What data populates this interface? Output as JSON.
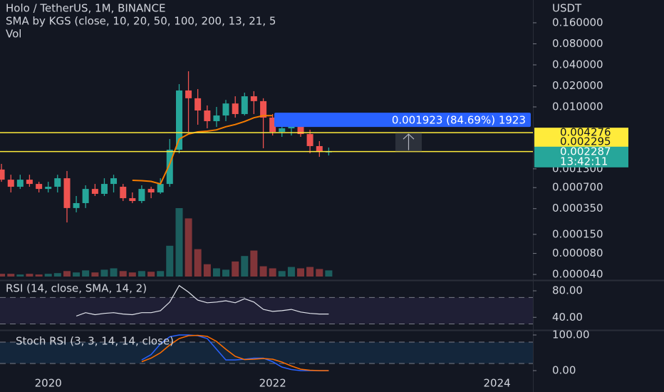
{
  "chart_data": [
    {
      "type": "candlestick",
      "title": "Holo / TetherUS, 1M, BINANCE",
      "subtitle": "SMA by KGS (close, 10, 20, 50, 100, 200, 13, 21, 5",
      "volume_label": "Vol",
      "y_axis_label": "USDT",
      "log_scale": true,
      "up_color": "#26a69a",
      "down_color": "#ef5350",
      "x": [
        2019.583,
        2019.667,
        2019.75,
        2019.833,
        2019.917,
        2020,
        2020.083,
        2020.167,
        2020.25,
        2020.333,
        2020.417,
        2020.5,
        2020.583,
        2020.667,
        2020.75,
        2020.833,
        2020.917,
        2021,
        2021.083,
        2021.167,
        2021.25,
        2021.333,
        2021.417,
        2021.5,
        2021.583,
        2021.667,
        2021.75,
        2021.833,
        2021.917,
        2022,
        2022.083,
        2022.167,
        2022.25,
        2022.333,
        2022.417,
        2022.5
      ],
      "xlim": [
        2019.57,
        2024.32
      ],
      "xticks": [
        2020,
        2022,
        2024
      ],
      "open": [
        0.00127,
        0.000909,
        0.00072,
        0.000909,
        0.00079,
        0.00067,
        0.00072,
        0.000953,
        0.000357,
        0.00042,
        0.00067,
        0.00057,
        0.00079,
        0.00072,
        0.000494,
        0.00045,
        0.00067,
        0.000597,
        0.00079,
        0.00244,
        0.0172,
        0.0133,
        0.00889,
        0.00625,
        0.00754,
        0.0112,
        0.0079,
        0.0142,
        0.0121,
        0.00703,
        0.00439,
        0.00494,
        0.00625,
        0.00409,
        0.00275,
        0.00228
      ],
      "high": [
        0.00153,
        0.00107,
        0.00107,
        0.00107,
        0.000848,
        0.000848,
        0.00107,
        0.00121,
        0.000531,
        0.000755,
        0.00079,
        0.000953,
        0.00107,
        0.00079,
        0.000597,
        0.000755,
        0.00072,
        0.000953,
        0.00347,
        0.0212,
        0.0324,
        0.018,
        0.0105,
        0.01,
        0.0126,
        0.0142,
        0.016,
        0.0168,
        0.0133,
        0.0079,
        0.00655,
        0.0079,
        0.00703,
        0.00471,
        0.00324,
        0.00262
      ],
      "low": [
        0.000848,
        0.000597,
        0.00067,
        0.00072,
        0.000597,
        0.000597,
        0.000597,
        0.000222,
        0.00031,
        0.000357,
        0.000531,
        0.000531,
        0.000597,
        0.00045,
        0.00042,
        0.00042,
        0.000494,
        0.00057,
        0.00072,
        0.00217,
        0.00439,
        0.00556,
        0.00494,
        0.00518,
        0.00625,
        0.00703,
        0.00754,
        0.0079,
        0.00256,
        0.0039,
        0.00373,
        0.0039,
        0.00373,
        0.00217,
        0.00193,
        0.00202
      ],
      "close": [
        0.000909,
        0.00072,
        0.000909,
        0.00079,
        0.00067,
        0.00072,
        0.000953,
        0.000357,
        0.00042,
        0.00067,
        0.00057,
        0.00079,
        0.000953,
        0.000494,
        0.00045,
        0.00067,
        0.000597,
        0.00079,
        0.00244,
        0.0172,
        0.0133,
        0.00889,
        0.00625,
        0.00754,
        0.0112,
        0.0079,
        0.0142,
        0.0121,
        0.00703,
        0.00439,
        0.00494,
        0.00625,
        0.00409,
        0.00275,
        0.00228,
        0.002287
      ],
      "volume": [
        4,
        4,
        3,
        4,
        3,
        4,
        5,
        8,
        6,
        9,
        6,
        10,
        12,
        8,
        6,
        8,
        7,
        8,
        45,
        100,
        85,
        40,
        18,
        12,
        10,
        22,
        30,
        38,
        15,
        12,
        8,
        14,
        12,
        14,
        11,
        9
      ],
      "vlim": [
        0,
        100
      ],
      "sma": {
        "color": "#f57c00",
        "values": [
          null,
          null,
          null,
          null,
          null,
          null,
          null,
          null,
          null,
          null,
          null,
          null,
          null,
          null,
          0.00089,
          0.00088,
          0.00086,
          0.00079,
          0.00153,
          0.00347,
          0.0041,
          0.0044,
          0.0045,
          0.0047,
          0.0052,
          0.0056,
          0.0062,
          0.007,
          0.0075,
          0.0075,
          null,
          null,
          null,
          null,
          null,
          null
        ]
      },
      "ylim": [
        3.4e-05,
        0.339
      ],
      "yticks": [
        {
          "value": 0.16,
          "label": "0.160000"
        },
        {
          "value": 0.08,
          "label": "0.080000"
        },
        {
          "value": 0.04,
          "label": "0.040000"
        },
        {
          "value": 0.02,
          "label": "0.020000"
        },
        {
          "value": 0.01,
          "label": "0.010000"
        },
        {
          "value": 0.0013,
          "label": "0.001300"
        },
        {
          "value": 0.0007,
          "label": "0.000700"
        },
        {
          "value": 0.00035,
          "label": "0.000350"
        },
        {
          "value": 0.00015,
          "label": "0.000150"
        },
        {
          "value": 8e-05,
          "label": "0.000080"
        },
        {
          "value": 4e-05,
          "label": "0.000040"
        }
      ],
      "price_lines": [
        {
          "value": 0.004276,
          "label": "0.004276"
        },
        {
          "value": 0.002295,
          "label": "0.002295"
        }
      ],
      "price_line_color": "#ffeb3b",
      "last_price": {
        "value": 0.002287,
        "label": "0.002287"
      },
      "countdown": "13:42:11",
      "measure": "0.001923 (84.69%) 1923"
    },
    {
      "type": "line",
      "title": "RSI (14, close, SMA, 14, 2)",
      "color": "#e0e3eb",
      "values": [
        null,
        null,
        null,
        null,
        null,
        null,
        null,
        null,
        42,
        47,
        44,
        46,
        47,
        45,
        44,
        47,
        47,
        50,
        63,
        88,
        78,
        66,
        62,
        63,
        65,
        62,
        68,
        63,
        52,
        49,
        50,
        52,
        48,
        46,
        45,
        45
      ],
      "ylim": [
        22,
        94
      ],
      "yticks": [
        {
          "value": 80,
          "label": "80.00"
        },
        {
          "value": 40,
          "label": "40.00"
        }
      ],
      "bands": [
        70,
        30
      ]
    },
    {
      "type": "line",
      "title": "Stoch RSI (3, 3, 14, 14, close)",
      "series": [
        {
          "color": "#2962ff",
          "values": [
            null,
            null,
            null,
            null,
            null,
            null,
            null,
            null,
            null,
            null,
            null,
            null,
            null,
            null,
            null,
            30,
            45,
            75,
            95,
            100,
            100,
            98,
            90,
            60,
            30,
            30,
            32,
            35,
            35,
            25,
            10,
            3,
            0,
            0,
            0,
            0
          ]
        },
        {
          "color": "#ff6d00",
          "values": [
            null,
            null,
            null,
            null,
            null,
            null,
            null,
            null,
            null,
            null,
            null,
            null,
            null,
            null,
            null,
            25,
            35,
            50,
            72,
            90,
            98,
            99,
            96,
            82,
            60,
            40,
            31,
            32,
            34,
            32,
            24,
            13,
            4,
            1,
            0,
            0
          ]
        }
      ],
      "ylim": [
        -10,
        112
      ],
      "yticks": [
        {
          "value": 100,
          "label": "100.00"
        },
        {
          "value": 0,
          "label": "0.00"
        }
      ],
      "bands": [
        80,
        20
      ]
    }
  ]
}
